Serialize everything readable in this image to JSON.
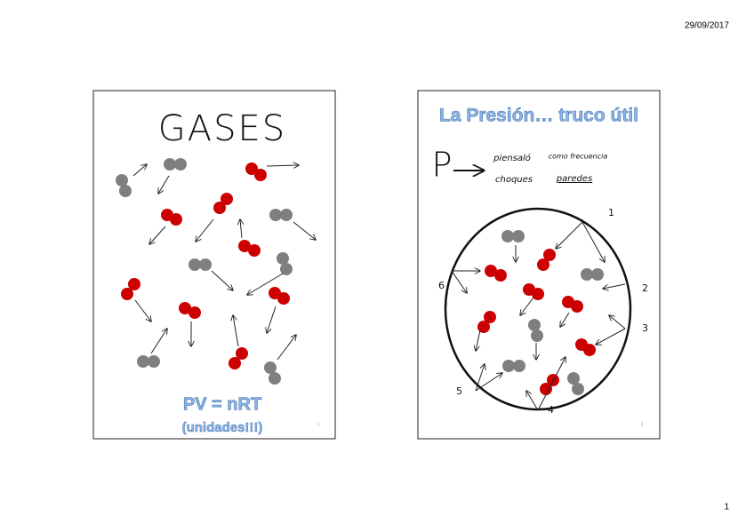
{
  "header": {
    "date": "29/09/2017"
  },
  "slides": [
    {
      "title": "GASES",
      "equation": "PV = nRT",
      "note": "(unidades!!!)",
      "number": "1"
    },
    {
      "title": "La Presión… truco útil",
      "symbol": "P",
      "handwriting": [
        "piensaló",
        "como frecuencia",
        "choques",
        "paredes"
      ],
      "wall_labels": [
        "1",
        "2",
        "3",
        "4",
        "5",
        "6"
      ],
      "number": "2"
    }
  ],
  "footer": {
    "page": "1"
  }
}
